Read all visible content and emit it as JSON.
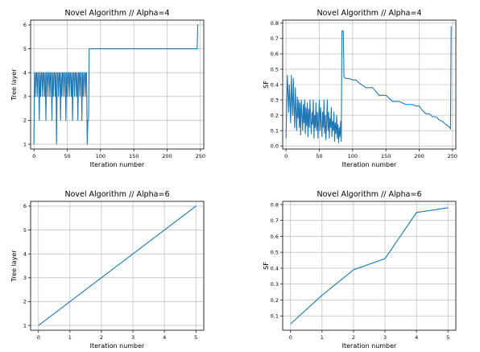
{
  "chart_data": [
    {
      "type": "line",
      "title": "Novel Algorithm // Alpha=4",
      "xlabel": "Iteration number",
      "ylabel": "Tree layer",
      "xlim": [
        -5,
        255
      ],
      "ylim": [
        0.8,
        6.2
      ],
      "xticks": [
        0,
        50,
        100,
        150,
        200,
        250
      ],
      "yticks": [
        1,
        2,
        3,
        4,
        5,
        6
      ],
      "grid": true,
      "series": [
        {
          "x": [
            0,
            1,
            2,
            3,
            4,
            5,
            6,
            7,
            8,
            9,
            10,
            11,
            12,
            13,
            14,
            15,
            16,
            17,
            18,
            19,
            20,
            21,
            22,
            23,
            24,
            25,
            26,
            27,
            28,
            29,
            30,
            31,
            32,
            33,
            34,
            35,
            36,
            37,
            38,
            39,
            40,
            41,
            42,
            43,
            44,
            45,
            46,
            47,
            48,
            49,
            50,
            51,
            52,
            53,
            54,
            55,
            56,
            57,
            58,
            59,
            60,
            61,
            62,
            63,
            64,
            65,
            66,
            67,
            68,
            69,
            70,
            71,
            72,
            73,
            74,
            75,
            76,
            77,
            78,
            79,
            80,
            81,
            82,
            83,
            84,
            85,
            90,
            100,
            120,
            150,
            180,
            200,
            220,
            240,
            245,
            246,
            247
          ],
          "values": [
            1,
            4,
            3,
            4,
            4,
            3,
            4,
            4,
            2,
            4,
            3,
            4,
            4,
            3,
            4,
            4,
            3,
            4,
            2,
            4,
            4,
            3,
            4,
            4,
            3,
            4,
            4,
            2,
            4,
            3,
            4,
            4,
            3,
            4,
            1,
            4,
            4,
            3,
            4,
            4,
            2,
            4,
            3,
            4,
            4,
            3,
            4,
            4,
            2,
            4,
            3,
            4,
            4,
            3,
            4,
            4,
            3,
            4,
            2,
            4,
            4,
            3,
            4,
            4,
            3,
            4,
            2,
            4,
            4,
            3,
            4,
            4,
            2,
            4,
            3,
            4,
            4,
            3,
            4,
            4,
            1,
            2,
            2,
            5,
            5,
            5,
            5,
            5,
            5,
            5,
            5,
            5,
            5,
            5,
            5,
            6,
            6
          ]
        }
      ]
    },
    {
      "type": "line",
      "title": "Novel Algorithm // Alpha=4",
      "xlabel": "Iteration number",
      "ylabel": "SF",
      "xlim": [
        -5,
        255
      ],
      "ylim": [
        -0.02,
        0.82
      ],
      "xticks": [
        0,
        50,
        100,
        150,
        200,
        250
      ],
      "yticks": [
        0.0,
        0.1,
        0.2,
        0.3,
        0.4,
        0.5,
        0.6,
        0.7,
        0.8
      ],
      "grid": true,
      "series": [
        {
          "x": [
            0,
            2,
            3,
            4,
            5,
            6,
            7,
            8,
            9,
            10,
            11,
            12,
            13,
            14,
            15,
            16,
            17,
            18,
            19,
            20,
            21,
            22,
            23,
            24,
            25,
            26,
            27,
            28,
            29,
            30,
            31,
            32,
            33,
            34,
            35,
            36,
            37,
            38,
            39,
            40,
            41,
            42,
            43,
            44,
            45,
            46,
            47,
            48,
            49,
            50,
            51,
            52,
            53,
            54,
            55,
            56,
            57,
            58,
            59,
            60,
            61,
            62,
            63,
            64,
            65,
            66,
            67,
            68,
            69,
            70,
            71,
            72,
            73,
            74,
            75,
            76,
            77,
            78,
            79,
            80,
            81,
            82,
            83,
            84,
            85,
            86,
            87,
            90,
            95,
            100,
            105,
            110,
            120,
            130,
            140,
            150,
            160,
            170,
            180,
            190,
            195,
            200,
            205,
            210,
            215,
            220,
            225,
            230,
            235,
            240,
            243,
            246,
            247,
            248
          ],
          "values": [
            0.05,
            0.46,
            0.35,
            0.22,
            0.4,
            0.28,
            0.15,
            0.46,
            0.3,
            0.2,
            0.44,
            0.25,
            0.12,
            0.38,
            0.22,
            0.1,
            0.32,
            0.18,
            0.3,
            0.12,
            0.28,
            0.07,
            0.3,
            0.2,
            0.1,
            0.27,
            0.15,
            0.3,
            0.08,
            0.25,
            0.13,
            0.28,
            0.06,
            0.24,
            0.12,
            0.3,
            0.16,
            0.08,
            0.22,
            0.14,
            0.3,
            0.05,
            0.2,
            0.12,
            0.28,
            0.1,
            0.22,
            0.05,
            0.18,
            0.3,
            0.1,
            0.25,
            0.15,
            0.06,
            0.22,
            0.12,
            0.3,
            0.08,
            0.2,
            0.04,
            0.16,
            0.3,
            0.1,
            0.22,
            0.05,
            0.18,
            0.12,
            0.25,
            0.06,
            0.16,
            0.1,
            0.22,
            0.03,
            0.15,
            0.08,
            0.2,
            0.05,
            0.14,
            0.02,
            0.12,
            0.06,
            0.16,
            0.03,
            0.75,
            0.75,
            0.75,
            0.45,
            0.44,
            0.44,
            0.43,
            0.43,
            0.41,
            0.38,
            0.38,
            0.33,
            0.33,
            0.29,
            0.29,
            0.27,
            0.27,
            0.26,
            0.26,
            0.23,
            0.21,
            0.21,
            0.19,
            0.19,
            0.17,
            0.16,
            0.14,
            0.13,
            0.12,
            0.11,
            0.78
          ]
        }
      ]
    },
    {
      "type": "line",
      "title": "Novel Algorithm // Alpha=6",
      "xlabel": "Iteration number",
      "ylabel": "Tree layer",
      "xlim": [
        -0.25,
        5.25
      ],
      "ylim": [
        0.8,
        6.2
      ],
      "xticks": [
        0,
        1,
        2,
        3,
        4,
        5
      ],
      "yticks": [
        1,
        2,
        3,
        4,
        5,
        6
      ],
      "grid": true,
      "series": [
        {
          "x": [
            0,
            1,
            2,
            3,
            4,
            5
          ],
          "values": [
            1,
            2,
            3,
            4,
            5,
            6
          ]
        }
      ]
    },
    {
      "type": "line",
      "title": "Novel Algorithm // Alpha=6",
      "xlabel": "Iteration number",
      "ylabel": "SF",
      "xlim": [
        -0.25,
        5.25
      ],
      "ylim": [
        0.01,
        0.82
      ],
      "xticks": [
        0,
        1,
        2,
        3,
        4,
        5
      ],
      "yticks": [
        0.1,
        0.2,
        0.3,
        0.4,
        0.5,
        0.6,
        0.7,
        0.8
      ],
      "grid": true,
      "series": [
        {
          "x": [
            0,
            1,
            2,
            3,
            4,
            5
          ],
          "values": [
            0.05,
            0.23,
            0.39,
            0.46,
            0.75,
            0.78
          ]
        }
      ]
    }
  ]
}
